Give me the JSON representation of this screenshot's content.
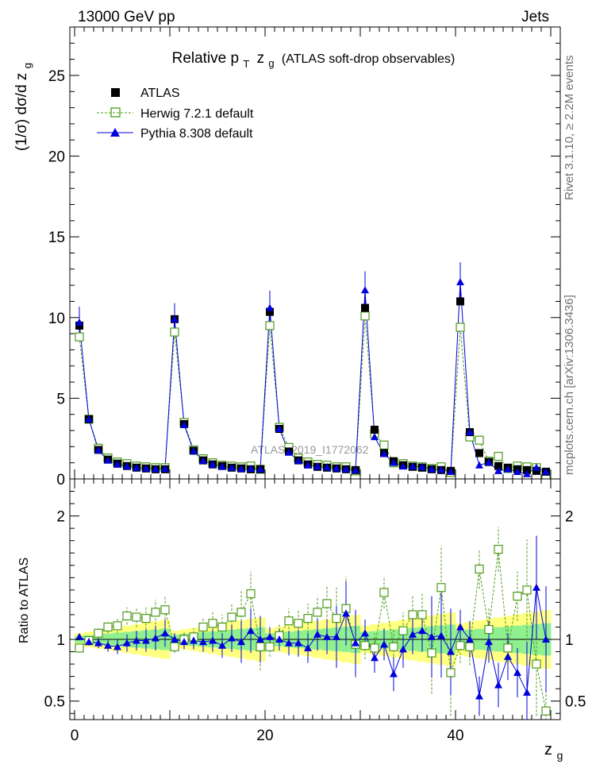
{
  "header": {
    "left": "13000 GeV pp",
    "right": "Jets",
    "title_prefix": "Relative p",
    "title_sub": "T",
    "title_var": "z",
    "title_var_sub": "g",
    "title_suffix": "(ATLAS soft-drop observables)",
    "watermark": "ATLAS_2019_I1772062",
    "side_rivet": "Rivet 3.1.10, ≥ 2.2M events",
    "side_mcplots": "mcplots.cern.ch [arXiv:1306.3436]"
  },
  "colors": {
    "atlas": "#000000",
    "herwig": "#4c9a1a",
    "pythia": "#0000dd",
    "band_inner": "#90f090",
    "band_outer": "#ffff80"
  },
  "chart_data": [
    {
      "type": "scatter",
      "ylabel": "(1/σ) dσ/d z",
      "ylabel_sub": "g",
      "ylim": [
        0,
        28
      ],
      "xlim": [
        -0.5,
        51
      ],
      "yticks": [
        0,
        5,
        10,
        15,
        20,
        25
      ],
      "x": [
        0.5,
        1.5,
        2.5,
        3.5,
        4.5,
        5.5,
        6.5,
        7.5,
        8.5,
        9.5,
        10.5,
        11.5,
        12.5,
        13.5,
        14.5,
        15.5,
        16.5,
        17.5,
        18.5,
        19.5,
        20.5,
        21.5,
        22.5,
        23.5,
        24.5,
        25.5,
        26.5,
        27.5,
        28.5,
        29.5,
        30.5,
        31.5,
        32.5,
        33.5,
        34.5,
        35.5,
        36.5,
        37.5,
        38.5,
        39.5,
        40.5,
        41.5,
        42.5,
        43.5,
        44.5,
        45.5,
        46.5,
        47.5,
        48.5,
        49.5
      ],
      "legend": [
        {
          "key": "atlas",
          "label": "ATLAS"
        },
        {
          "key": "herwig",
          "label": "Herwig 7.2.1 default"
        },
        {
          "key": "pythia",
          "label": "Pythia 8.308 default"
        }
      ],
      "series": [
        {
          "key": "atlas",
          "name": "ATLAS",
          "values": [
            9.5,
            3.7,
            1.8,
            1.2,
            0.95,
            0.8,
            0.7,
            0.65,
            0.6,
            0.6,
            9.9,
            3.4,
            1.75,
            1.15,
            0.9,
            0.8,
            0.7,
            0.65,
            0.6,
            0.6,
            10.35,
            3.1,
            1.7,
            1.15,
            0.9,
            0.75,
            0.7,
            0.65,
            0.6,
            0.55,
            10.6,
            3.05,
            1.6,
            1.1,
            0.85,
            0.75,
            0.7,
            0.6,
            0.55,
            0.5,
            11.0,
            2.9,
            1.6,
            1.05,
            0.8,
            0.7,
            0.6,
            0.55,
            0.5,
            0.45
          ]
        },
        {
          "key": "herwig",
          "name": "Herwig 7.2.1 default",
          "values": [
            8.8,
            3.7,
            1.9,
            1.3,
            1.05,
            0.95,
            0.8,
            0.75,
            0.7,
            0.7,
            9.1,
            3.5,
            1.8,
            1.25,
            1.0,
            0.85,
            0.8,
            0.75,
            0.8,
            0.6,
            9.5,
            3.2,
            1.95,
            1.3,
            1.05,
            0.9,
            0.85,
            0.75,
            0.75,
            0.5,
            10.1,
            2.8,
            2.1,
            1.0,
            0.95,
            0.8,
            0.75,
            0.65,
            0.75,
            0.4,
            9.4,
            2.6,
            2.4,
            1.1,
            1.4,
            0.65,
            0.8,
            0.75,
            0.7,
            0.2
          ]
        },
        {
          "key": "pythia",
          "name": "Pythia 8.308 default",
          "values": [
            9.7,
            3.7,
            1.78,
            1.15,
            0.9,
            0.78,
            0.7,
            0.65,
            0.62,
            0.63,
            9.9,
            3.35,
            1.73,
            1.13,
            0.9,
            0.76,
            0.7,
            0.62,
            0.64,
            0.6,
            10.6,
            3.1,
            1.65,
            1.12,
            0.85,
            0.78,
            0.72,
            0.66,
            0.6,
            0.54,
            11.7,
            2.6,
            1.55,
            1.0,
            0.78,
            0.78,
            0.75,
            0.61,
            0.57,
            0.45,
            12.2,
            2.9,
            0.85,
            1.03,
            0.5,
            0.6,
            0.44,
            0.31,
            0.71,
            0.45
          ]
        }
      ]
    },
    {
      "type": "scatter",
      "ylabel": "Ratio to ATLAS",
      "xlabel": "z",
      "xlabel_sub": "g",
      "ylim": [
        0.35,
        2.3
      ],
      "xlim": [
        -0.5,
        51
      ],
      "yticks": [
        0.5,
        1,
        2
      ],
      "xticks": [
        0,
        20,
        40
      ],
      "series": [
        {
          "key": "herwig",
          "name": "Herwig 7.2.1 default",
          "values": [
            0.93,
            0.99,
            1.05,
            1.1,
            1.11,
            1.19,
            1.18,
            1.17,
            1.22,
            1.24,
            0.94,
            1.0,
            1.02,
            1.1,
            1.13,
            1.1,
            1.18,
            1.22,
            1.37,
            0.94,
            0.94,
            1.03,
            1.15,
            1.13,
            1.17,
            1.22,
            1.29,
            1.17,
            1.25,
            0.96,
            0.95,
            0.93,
            1.38,
            0.94,
            1.07,
            1.2,
            1.2,
            0.89,
            1.42,
            0.73,
            0.95,
            0.94,
            1.57,
            1.08,
            1.73,
            0.93,
            1.35,
            1.4,
            0.8,
            0.42
          ]
        },
        {
          "key": "pythia",
          "name": "Pythia 8.308 default",
          "values": [
            1.02,
            0.98,
            0.97,
            0.95,
            0.94,
            0.97,
            0.99,
            0.99,
            1.01,
            1.05,
            1.0,
            0.98,
            0.99,
            0.98,
            0.99,
            0.95,
            1.01,
            0.98,
            1.07,
            1.0,
            1.02,
            1.0,
            0.97,
            0.97,
            0.93,
            1.04,
            1.02,
            1.02,
            1.21,
            0.97,
            1.05,
            0.85,
            0.96,
            0.72,
            0.92,
            1.04,
            1.07,
            1.02,
            1.03,
            0.9,
            1.1,
            1.0,
            0.54,
            0.98,
            0.63,
            0.86,
            0.73,
            0.57,
            1.42,
            1.0
          ]
        }
      ]
    }
  ]
}
